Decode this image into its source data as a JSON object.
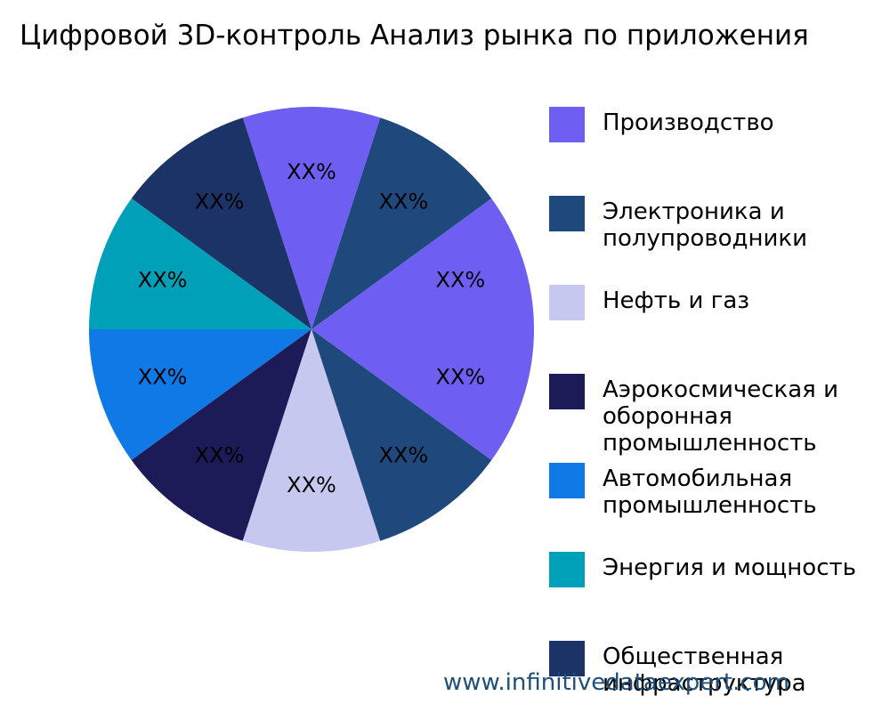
{
  "chart_data": {
    "type": "pie",
    "title": "Цифровой 3D-контроль Анализ рынка по приложения",
    "legend_position": "right",
    "categories": [
      {
        "name": "Производство",
        "color": "#6f5ef2"
      },
      {
        "name": "Электроника и полупроводники",
        "color": "#1f497d"
      },
      {
        "name": "Нефть и газ",
        "color": "#c7c8f0"
      },
      {
        "name": "Аэрокосмическая и оборонная промышленность",
        "color": "#1d1a58"
      },
      {
        "name": "Автомобильная промышленность",
        "color": "#0f7ae5"
      },
      {
        "name": "Энергия и мощность",
        "color": "#00a0b8"
      },
      {
        "name": "Общественная инфраструктура",
        "color": "#1b3366"
      }
    ],
    "slices": [
      {
        "value": 10,
        "label": "XX%",
        "color": "#6f5ef2"
      },
      {
        "value": 10,
        "label": "XX%",
        "color": "#1f497d"
      },
      {
        "value": 10,
        "label": "XX%",
        "color": "#6f5ef2"
      },
      {
        "value": 10,
        "label": "XX%",
        "color": "#1b3366"
      },
      {
        "value": 10,
        "label": "XX%",
        "color": "#00a0b8"
      },
      {
        "value": 10,
        "label": "XX%",
        "color": "#0f7ae5"
      },
      {
        "value": 10,
        "label": "XX%",
        "color": "#1d1a58"
      },
      {
        "value": 10,
        "label": "XX%",
        "color": "#c7c8f0"
      },
      {
        "value": 10,
        "label": "XX%",
        "color": "#1f497d"
      },
      {
        "value": 10,
        "label": "XX%",
        "color": "#6f5ef2"
      }
    ]
  },
  "legend": {
    "items": [
      {
        "label": "Производство"
      },
      {
        "label": "Электроника и\nполупроводники"
      },
      {
        "label": "Нефть и газ"
      },
      {
        "label": "Аэрокосмическая и\nоборонная\nпромышленность"
      },
      {
        "label": "Автомобильная\nпромышленность"
      },
      {
        "label": "Энергия и мощность"
      },
      {
        "label": "Общественная\nинфраструктура"
      }
    ]
  },
  "watermark": "www.infinitivedataexpert.com"
}
